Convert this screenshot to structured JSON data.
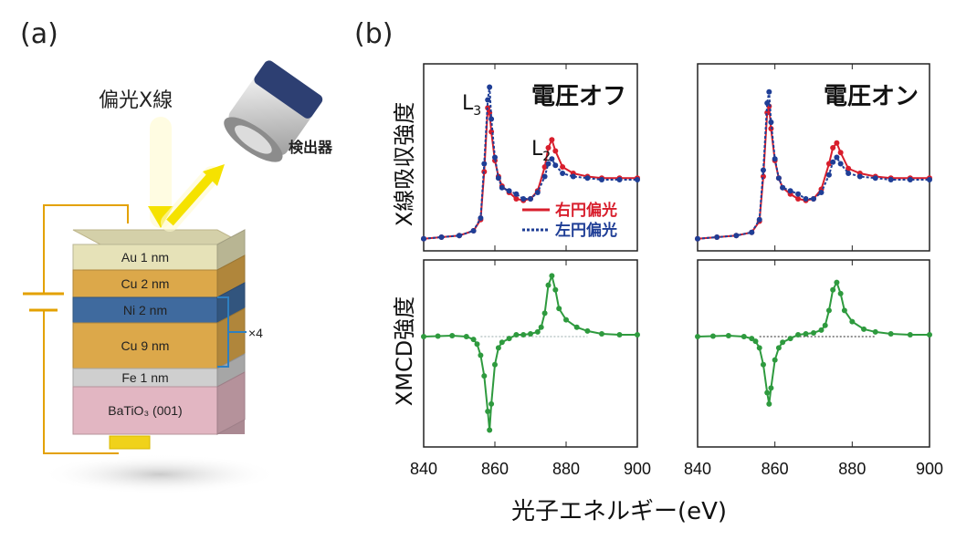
{
  "panels": {
    "a_label": "(a)",
    "b_label": "(b)"
  },
  "diagram_a": {
    "xray_label": "偏光X線",
    "detector_label": "検出器",
    "repeat_label": "×4",
    "layers": [
      {
        "label": "Au 1 nm",
        "color": "#e6e2b8"
      },
      {
        "label": "Cu 2 nm",
        "color": "#dca84a"
      },
      {
        "label": "Ni 2 nm",
        "color": "#3f6a9e"
      },
      {
        "label": "Cu 9 nm",
        "color": "#dca84a"
      },
      {
        "label": "Fe 1 nm",
        "color": "#cfcfcf"
      },
      {
        "label": "BaTiO₃ (001)",
        "color": "#e2b6c2"
      }
    ]
  },
  "chart_data": [
    {
      "type": "line",
      "title": "電圧オフ",
      "ylabel": "X線吸収強度",
      "xlim": [
        840,
        900
      ],
      "annotations": [
        "L3",
        "L2"
      ],
      "legend": [
        "右円偏光",
        "左円偏光"
      ],
      "series": [
        {
          "name": "右円偏光",
          "color": "#d81e2c",
          "x": [
            840,
            845,
            850,
            854,
            856,
            857,
            858,
            858.5,
            859,
            860,
            861,
            862,
            864,
            866,
            868,
            870,
            872,
            874,
            875,
            876,
            877,
            879,
            882,
            886,
            890,
            895,
            900
          ],
          "y": [
            0.03,
            0.04,
            0.05,
            0.08,
            0.15,
            0.45,
            0.85,
            0.82,
            0.7,
            0.52,
            0.42,
            0.36,
            0.32,
            0.28,
            0.27,
            0.28,
            0.33,
            0.48,
            0.6,
            0.65,
            0.58,
            0.48,
            0.44,
            0.42,
            0.41,
            0.41,
            0.41
          ]
        },
        {
          "name": "左円偏光",
          "color": "#1f3e96",
          "x": [
            840,
            845,
            850,
            854,
            856,
            857,
            858,
            858.5,
            859,
            860,
            861,
            862,
            864,
            866,
            868,
            870,
            872,
            874,
            875,
            876,
            877,
            879,
            882,
            886,
            890,
            895,
            900
          ],
          "y": [
            0.03,
            0.04,
            0.05,
            0.08,
            0.16,
            0.5,
            0.9,
            0.98,
            0.78,
            0.54,
            0.41,
            0.35,
            0.33,
            0.31,
            0.28,
            0.28,
            0.32,
            0.42,
            0.5,
            0.53,
            0.49,
            0.44,
            0.42,
            0.41,
            0.4,
            0.4,
            0.4
          ]
        }
      ]
    },
    {
      "type": "line",
      "title": "電圧オン",
      "xlim": [
        840,
        900
      ],
      "series": [
        {
          "name": "右円偏光",
          "color": "#d81e2c",
          "x": [
            840,
            845,
            850,
            854,
            856,
            857,
            858,
            858.5,
            859,
            860,
            861,
            862,
            864,
            866,
            868,
            870,
            872,
            874,
            875,
            876,
            877,
            879,
            882,
            886,
            890,
            895,
            900
          ],
          "y": [
            0.03,
            0.04,
            0.05,
            0.07,
            0.14,
            0.42,
            0.82,
            0.86,
            0.72,
            0.52,
            0.41,
            0.35,
            0.31,
            0.28,
            0.27,
            0.28,
            0.34,
            0.5,
            0.6,
            0.63,
            0.57,
            0.47,
            0.44,
            0.42,
            0.41,
            0.41,
            0.41
          ]
        },
        {
          "name": "左円偏光",
          "color": "#1f3e96",
          "x": [
            840,
            845,
            850,
            854,
            856,
            857,
            858,
            858.5,
            859,
            860,
            861,
            862,
            864,
            866,
            868,
            870,
            872,
            874,
            875,
            876,
            877,
            879,
            882,
            886,
            890,
            895,
            900
          ],
          "y": [
            0.03,
            0.04,
            0.05,
            0.07,
            0.15,
            0.46,
            0.88,
            0.95,
            0.76,
            0.53,
            0.41,
            0.35,
            0.33,
            0.31,
            0.28,
            0.28,
            0.32,
            0.43,
            0.51,
            0.54,
            0.5,
            0.44,
            0.42,
            0.41,
            0.4,
            0.4,
            0.4
          ]
        }
      ]
    },
    {
      "type": "line",
      "ylabel": "XMCD強度",
      "xlim": [
        840,
        900
      ],
      "xticks": [
        840,
        860,
        880,
        900
      ],
      "series": [
        {
          "name": "XMCD",
          "color": "#2e9a3e",
          "x": [
            840,
            844,
            848,
            852,
            854,
            855,
            856,
            857,
            858,
            858.5,
            859,
            860,
            861,
            862,
            864,
            866,
            868,
            870,
            872,
            873,
            874,
            875,
            876,
            877,
            878,
            880,
            883,
            886,
            890,
            895,
            900
          ],
          "y": [
            0,
            0.005,
            0.01,
            0,
            -0.03,
            -0.08,
            -0.2,
            -0.42,
            -0.8,
            -1.0,
            -0.72,
            -0.3,
            -0.12,
            -0.06,
            -0.02,
            0.02,
            0.02,
            0.03,
            0.05,
            0.1,
            0.25,
            0.55,
            0.65,
            0.5,
            0.3,
            0.18,
            0.1,
            0.06,
            0.03,
            0.02,
            0.02
          ]
        }
      ]
    },
    {
      "type": "line",
      "xlim": [
        840,
        900
      ],
      "xticks": [
        840,
        860,
        880,
        900
      ],
      "series": [
        {
          "name": "XMCD",
          "color": "#2e9a3e",
          "x": [
            840,
            844,
            848,
            852,
            854,
            855,
            856,
            857,
            858,
            858.5,
            859,
            860,
            861,
            862,
            864,
            866,
            868,
            870,
            872,
            873,
            874,
            875,
            876,
            877,
            878,
            880,
            883,
            886,
            890,
            895,
            900
          ],
          "y": [
            0,
            0.005,
            0.01,
            0,
            -0.02,
            -0.05,
            -0.12,
            -0.3,
            -0.6,
            -0.72,
            -0.55,
            -0.25,
            -0.12,
            -0.06,
            -0.02,
            0.02,
            0.03,
            0.04,
            0.07,
            0.12,
            0.28,
            0.5,
            0.58,
            0.46,
            0.28,
            0.16,
            0.08,
            0.05,
            0.03,
            0.02,
            0.02
          ]
        }
      ]
    }
  ],
  "xaxis_label": "光子エネルギー(eV)"
}
